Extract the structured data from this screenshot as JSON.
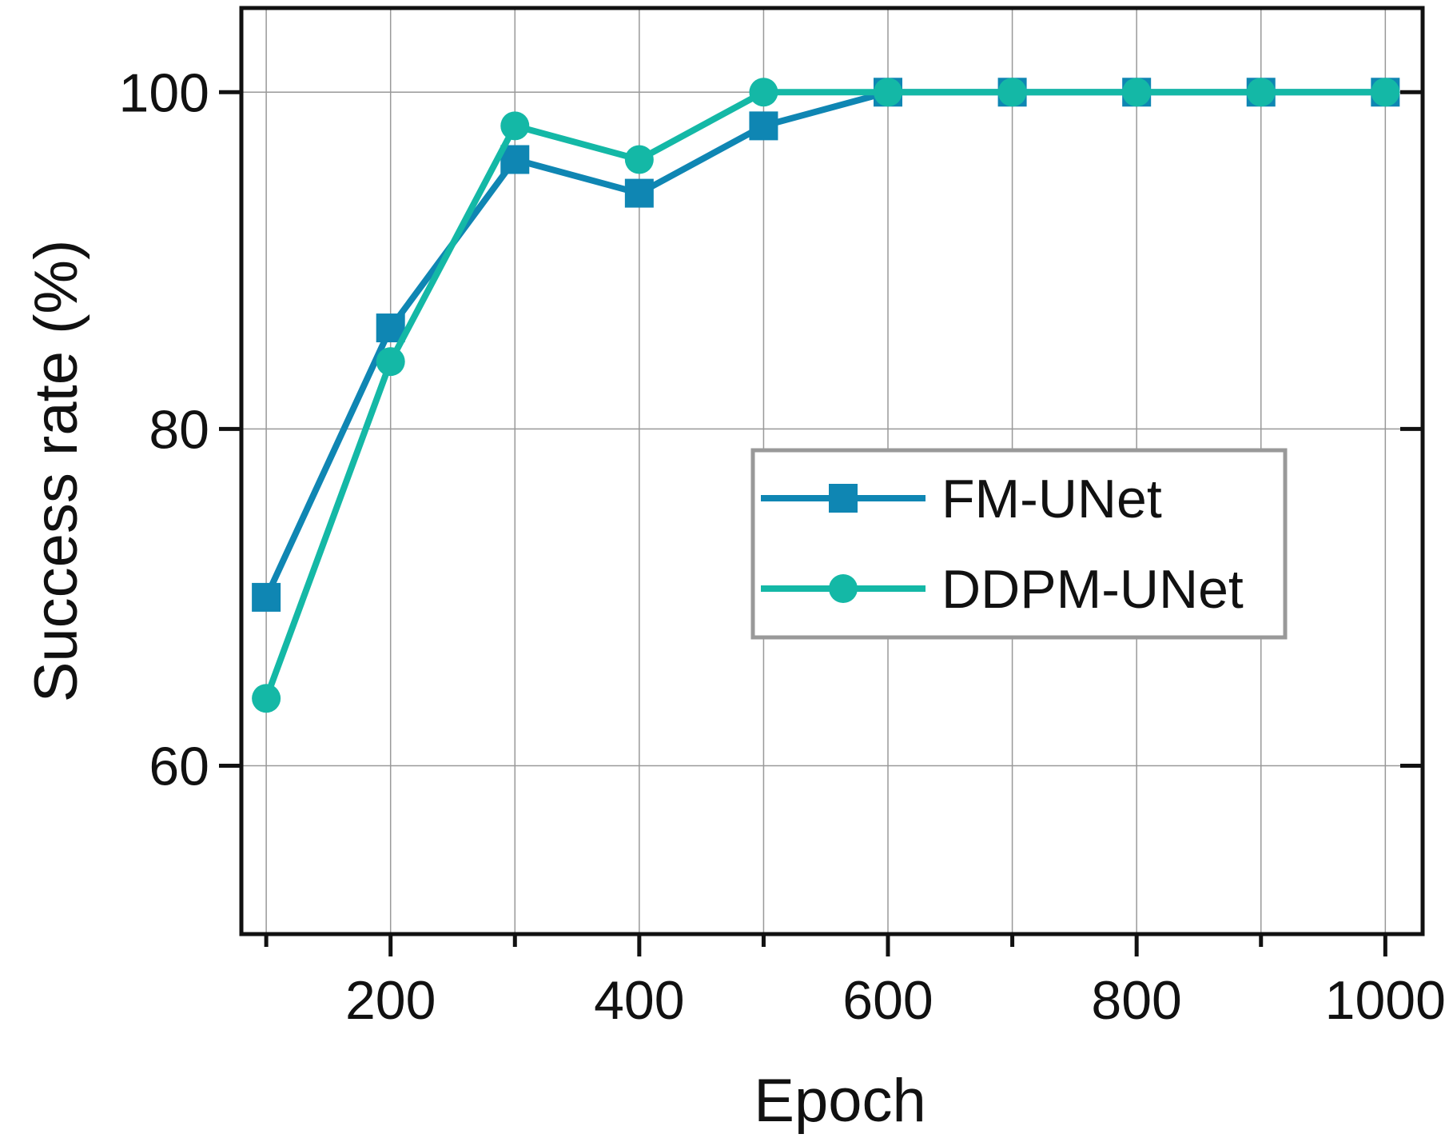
{
  "chart_data": {
    "type": "line",
    "xlabel": "Epoch",
    "ylabel": "Success rate (%)",
    "xlim": [
      80,
      1030
    ],
    "ylim": [
      50,
      105
    ],
    "xticks": [
      200,
      400,
      600,
      800,
      1000
    ],
    "xtick_labels": [
      "200",
      "400",
      "600",
      "800",
      "1000"
    ],
    "yticks": [
      60,
      80,
      100
    ],
    "ytick_labels": [
      "60",
      "80",
      "100"
    ],
    "grid": true,
    "legend_position": "center-right",
    "x": [
      100,
      200,
      300,
      400,
      500,
      600,
      700,
      800,
      900,
      1000
    ],
    "series": [
      {
        "name": "FM-UNet",
        "marker": "square",
        "color": "#0f86b3",
        "values": [
          70,
          86,
          96,
          94,
          98,
          100,
          100,
          100,
          100,
          100
        ]
      },
      {
        "name": "DDPM-UNet",
        "marker": "circle",
        "color": "#14b8a6",
        "values": [
          64,
          84,
          98,
          96,
          100,
          100,
          100,
          100,
          100,
          100
        ]
      }
    ]
  }
}
